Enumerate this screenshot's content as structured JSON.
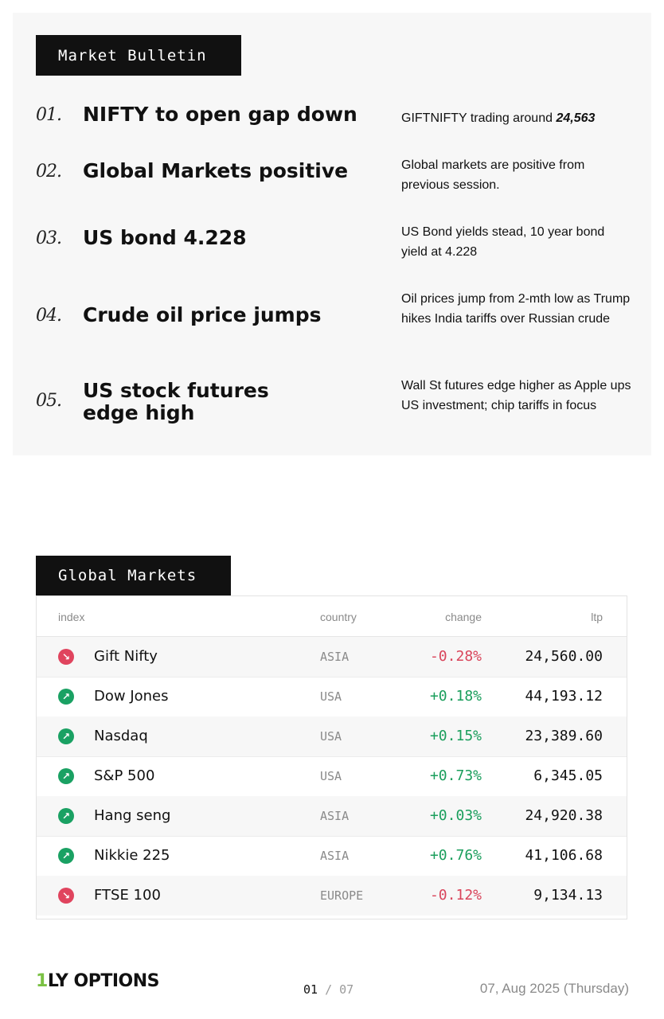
{
  "bulletin": {
    "title": "Market Bulletin",
    "items": [
      {
        "num": "01.",
        "headline": "NIFTY to open gap down",
        "desc_pre": "GIFTNIFTY trading around ",
        "desc_bold": "24,563"
      },
      {
        "num": "02.",
        "headline": "Global Markets positive",
        "desc": "Global markets are positive from previous session."
      },
      {
        "num": "03.",
        "headline": "US bond 4.228",
        "desc": "US Bond yields stead, 10 year bond yield at 4.228"
      },
      {
        "num": "04.",
        "headline": "Crude oil price jumps",
        "desc": "Oil prices jump from 2-mth low as Trump hikes India tariffs over Russian crude"
      },
      {
        "num": "05.",
        "headline_line1": "US stock futures",
        "headline_line2": "edge high",
        "desc": "Wall St futures edge higher as Apple ups US investment; chip tariffs in focus"
      }
    ]
  },
  "global_markets": {
    "title": "Global Markets",
    "columns": {
      "index": "index",
      "country": "country",
      "change": "change",
      "ltp": "ltp"
    },
    "rows": [
      {
        "name": "Gift Nifty",
        "country": "ASIA",
        "change": "-0.28%",
        "ltp": "24,560.00",
        "direction": "down",
        "icon": "arrow-down-right-icon"
      },
      {
        "name": "Dow Jones",
        "country": "USA",
        "change": "+0.18%",
        "ltp": "44,193.12",
        "direction": "up",
        "icon": "arrow-up-right-icon"
      },
      {
        "name": "Nasdaq",
        "country": "USA",
        "change": "+0.15%",
        "ltp": "23,389.60",
        "direction": "up",
        "icon": "arrow-up-right-icon"
      },
      {
        "name": "S&P 500",
        "country": "USA",
        "change": "+0.73%",
        "ltp": "6,345.05",
        "direction": "up",
        "icon": "arrow-up-right-icon"
      },
      {
        "name": "Hang seng",
        "country": "ASIA",
        "change": "+0.03%",
        "ltp": "24,920.38",
        "direction": "up",
        "icon": "arrow-up-right-icon"
      },
      {
        "name": "Nikkie 225",
        "country": "ASIA",
        "change": "+0.76%",
        "ltp": "41,106.68",
        "direction": "up",
        "icon": "arrow-up-right-icon"
      },
      {
        "name": "FTSE 100",
        "country": "EUROPE",
        "change": "-0.12%",
        "ltp": "9,134.13",
        "direction": "down",
        "icon": "arrow-down-right-icon"
      }
    ]
  },
  "footer": {
    "logo_mark": "1",
    "logo_text": "LY OPTIONS",
    "page_current": "01",
    "page_sep": "/",
    "page_total": "07",
    "date": "07, Aug 2025 (Thursday)"
  },
  "colors": {
    "negative": "#d9455b",
    "positive": "#1a9e5c",
    "logo_accent": "#7ac143"
  }
}
